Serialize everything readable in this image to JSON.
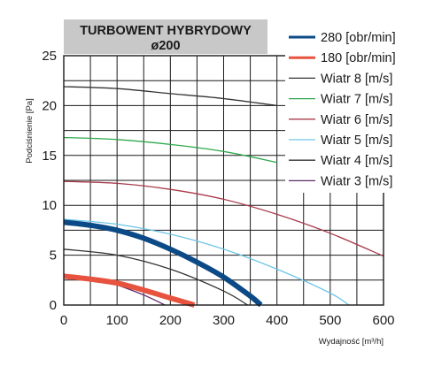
{
  "chart_data": {
    "type": "line",
    "title": "TURBOWENT HYBRYDOWY",
    "subtitle": "ø200",
    "xlabel": "Wydajność [m³/h]",
    "ylabel": "Podciśnienie [Pa]",
    "xlim": [
      0,
      600
    ],
    "ylim": [
      0,
      25
    ],
    "xticks": [
      "0",
      "100",
      "200",
      "300",
      "400",
      "500",
      "600"
    ],
    "yticks": [
      "0",
      "5",
      "10",
      "15",
      "20",
      "25"
    ],
    "grid": true,
    "legend_position": "right",
    "series": [
      {
        "name": "280 [obr/min]",
        "color": "#0b4a86",
        "thick": true,
        "x": [
          0,
          50,
          100,
          150,
          200,
          250,
          300,
          350,
          370
        ],
        "y": [
          8.3,
          8.0,
          7.5,
          6.7,
          5.6,
          4.3,
          2.8,
          0.9,
          0
        ]
      },
      {
        "name": "180 [obr/min]",
        "color": "#e8533f",
        "thick": true,
        "x": [
          0,
          50,
          100,
          150,
          200,
          245
        ],
        "y": [
          2.9,
          2.6,
          2.2,
          1.5,
          0.7,
          0
        ]
      },
      {
        "name": "Wiatr  8 [m/s]",
        "color": "#333333",
        "thick": false,
        "x": [
          0,
          100,
          200,
          300,
          400
        ],
        "y": [
          21.9,
          21.7,
          21.2,
          20.7,
          20.0
        ]
      },
      {
        "name": "Wiatr  7 [m/s]",
        "color": "#2fa84f",
        "thick": false,
        "x": [
          0,
          100,
          200,
          300,
          400
        ],
        "y": [
          16.8,
          16.6,
          16.1,
          15.4,
          14.3
        ]
      },
      {
        "name": "Wiatr  6 [m/s]",
        "color": "#a83a4a",
        "thick": false,
        "x": [
          0,
          100,
          200,
          300,
          400,
          500,
          600
        ],
        "y": [
          12.4,
          12.2,
          11.6,
          10.6,
          9.1,
          7.2,
          4.9
        ]
      },
      {
        "name": "Wiatr  5 [m/s]",
        "color": "#6ec6e6",
        "thick": false,
        "x": [
          0,
          100,
          200,
          300,
          400,
          500,
          535
        ],
        "y": [
          8.6,
          8.1,
          7.1,
          5.6,
          3.6,
          1.2,
          0
        ]
      },
      {
        "name": "Wiatr  4 [m/s]",
        "color": "#333333",
        "thick": false,
        "x": [
          0,
          100,
          200,
          300,
          345
        ],
        "y": [
          5.6,
          5.0,
          3.6,
          1.4,
          0
        ]
      },
      {
        "name": "Wiatr  3 [m/s]",
        "color": "#5a2a6a",
        "thick": false,
        "x": [
          0,
          50,
          100,
          150,
          190
        ],
        "y": [
          3.0,
          2.7,
          2.0,
          1.0,
          0
        ]
      }
    ]
  }
}
